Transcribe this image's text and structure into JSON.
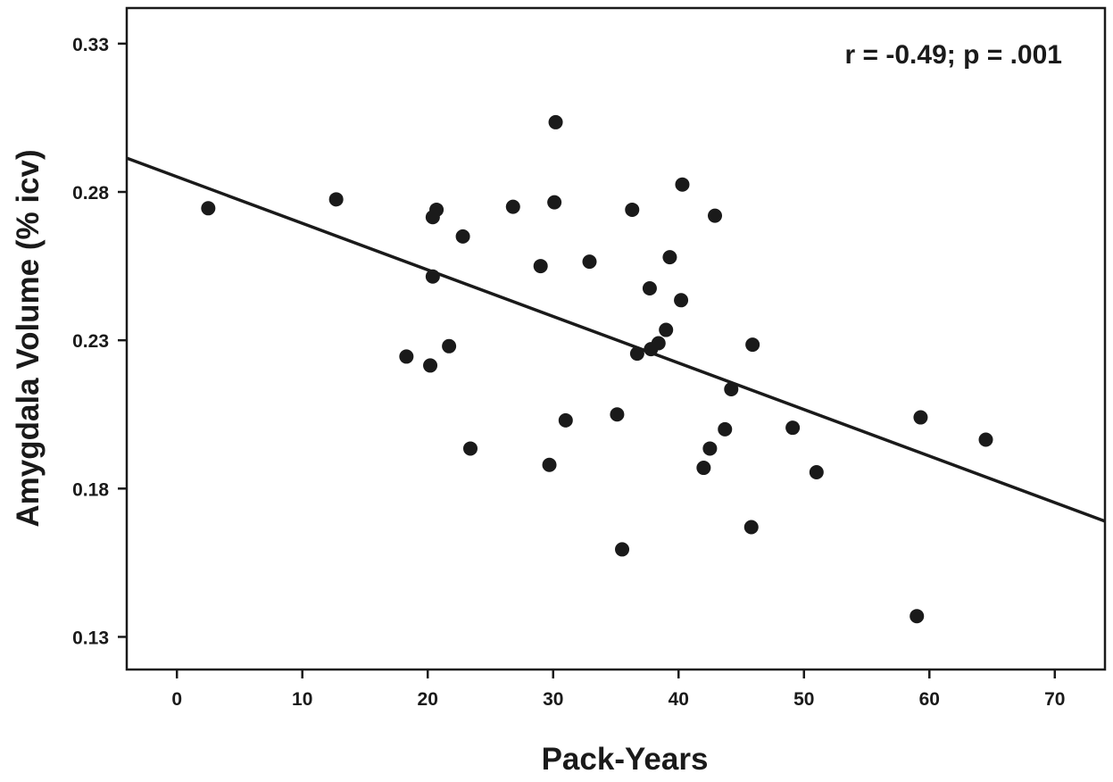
{
  "chart_data": {
    "type": "scatter",
    "title": "",
    "xlabel": "Pack-Years",
    "ylabel": "Amygdala Volume (% icv)",
    "xlim": [
      -4,
      74
    ],
    "ylim": [
      0.119,
      0.342
    ],
    "xticks": [
      0,
      10,
      20,
      30,
      40,
      50,
      60,
      70
    ],
    "yticks": [
      0.13,
      0.18,
      0.23,
      0.28,
      0.33
    ],
    "xtick_labels": [
      "0",
      "10",
      "20",
      "30",
      "40",
      "50",
      "60",
      "70"
    ],
    "ytick_labels": [
      "0.13",
      "0.18",
      "0.23",
      "0.28",
      "0.33"
    ],
    "grid": false,
    "annotation": "r = -0.49; p = .001",
    "colors": {
      "points": "#1a1a1a",
      "line": "#1a1a1a",
      "axes": "#1a1a1a"
    },
    "regression_line": {
      "x": [
        -4,
        74
      ],
      "y": [
        0.2914,
        0.169
      ]
    },
    "points": [
      {
        "x": 2.5,
        "y": 0.2745
      },
      {
        "x": 12.7,
        "y": 0.2775
      },
      {
        "x": 18.3,
        "y": 0.2245
      },
      {
        "x": 20.2,
        "y": 0.2215
      },
      {
        "x": 20.4,
        "y": 0.2715
      },
      {
        "x": 20.4,
        "y": 0.2515
      },
      {
        "x": 20.7,
        "y": 0.274
      },
      {
        "x": 21.7,
        "y": 0.228
      },
      {
        "x": 22.8,
        "y": 0.265
      },
      {
        "x": 23.4,
        "y": 0.1935
      },
      {
        "x": 26.8,
        "y": 0.275
      },
      {
        "x": 29.0,
        "y": 0.255
      },
      {
        "x": 29.7,
        "y": 0.188
      },
      {
        "x": 30.1,
        "y": 0.2765
      },
      {
        "x": 30.2,
        "y": 0.3035
      },
      {
        "x": 31.0,
        "y": 0.203
      },
      {
        "x": 32.9,
        "y": 0.2565
      },
      {
        "x": 35.1,
        "y": 0.205
      },
      {
        "x": 35.5,
        "y": 0.1595
      },
      {
        "x": 36.3,
        "y": 0.274
      },
      {
        "x": 36.7,
        "y": 0.2255
      },
      {
        "x": 37.7,
        "y": 0.2475
      },
      {
        "x": 37.8,
        "y": 0.227
      },
      {
        "x": 38.4,
        "y": 0.229
      },
      {
        "x": 39.0,
        "y": 0.2335
      },
      {
        "x": 39.3,
        "y": 0.258
      },
      {
        "x": 40.2,
        "y": 0.2435
      },
      {
        "x": 40.3,
        "y": 0.2825
      },
      {
        "x": 42.0,
        "y": 0.187
      },
      {
        "x": 42.5,
        "y": 0.1935
      },
      {
        "x": 42.9,
        "y": 0.272
      },
      {
        "x": 43.7,
        "y": 0.2
      },
      {
        "x": 44.2,
        "y": 0.2135
      },
      {
        "x": 45.8,
        "y": 0.167
      },
      {
        "x": 45.9,
        "y": 0.2285
      },
      {
        "x": 49.1,
        "y": 0.2005
      },
      {
        "x": 51.0,
        "y": 0.1855
      },
      {
        "x": 59.0,
        "y": 0.137
      },
      {
        "x": 59.3,
        "y": 0.204
      },
      {
        "x": 64.5,
        "y": 0.1965
      }
    ]
  }
}
